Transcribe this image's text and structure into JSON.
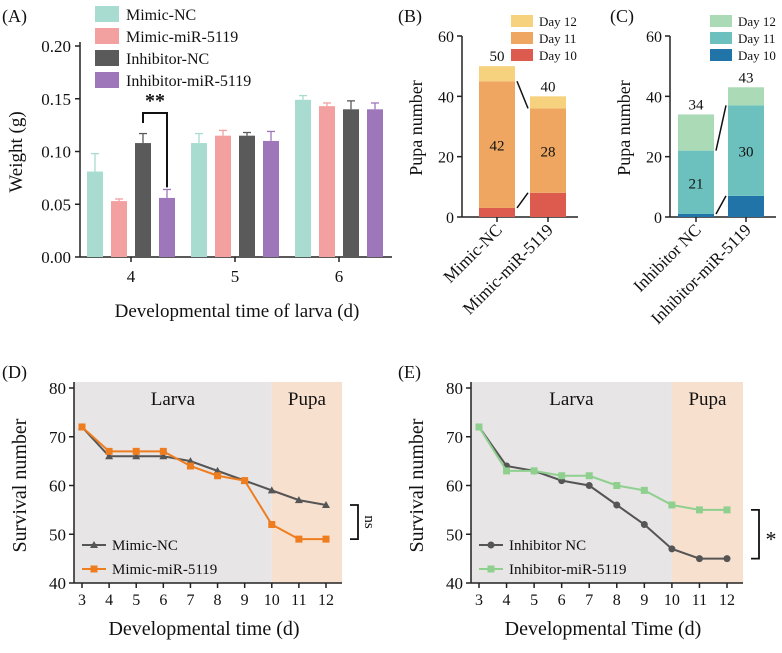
{
  "panels": {
    "A": {
      "label": "(A)"
    },
    "B": {
      "label": "(B)"
    },
    "C": {
      "label": "(C)"
    },
    "D": {
      "label": "(D)"
    },
    "E": {
      "label": "(E)"
    }
  },
  "colors": {
    "mimic_nc": "#a8dcd0",
    "mimic_mir": "#f3a0a0",
    "inhibitor_nc": "#5a5a5a",
    "inhibitor_mir": "#9e77bb",
    "b_day12": "#f6d17e",
    "b_day11": "#eea660",
    "b_day10": "#dd5a4e",
    "c_day12": "#aadbb6",
    "c_day11": "#6cc0be",
    "c_day10": "#2174a8",
    "larva_bg": "#e7e5e5",
    "pupa_bg": "#f8e0cf",
    "line_nc": "#555555",
    "line_mimic_mir": "#ee7d1f",
    "line_inh_mir": "#8fd08f"
  },
  "chart_data": [
    {
      "panel": "A",
      "type": "bar",
      "ylabel": "Weight (g)",
      "xlabel": "Developmental time of larva (d)",
      "ylim": [
        0,
        0.2
      ],
      "yticks": [
        "0.00",
        "0.05",
        "0.10",
        "0.15",
        "0.20"
      ],
      "categories": [
        "4",
        "5",
        "6"
      ],
      "series": [
        {
          "name": "Mimic-NC",
          "values": [
            0.081,
            0.108,
            0.149
          ],
          "errors": [
            0.017,
            0.009,
            0.004
          ]
        },
        {
          "name": "Mimic-miR-5119",
          "values": [
            0.053,
            0.115,
            0.143
          ],
          "errors": [
            0.002,
            0.005,
            0.003
          ]
        },
        {
          "name": "Inhibitor-NC",
          "values": [
            0.108,
            0.115,
            0.14
          ],
          "errors": [
            0.009,
            0.003,
            0.008
          ]
        },
        {
          "name": "Inhibitor-miR-5119",
          "values": [
            0.056,
            0.11,
            0.14
          ],
          "errors": [
            0.008,
            0.009,
            0.006
          ]
        }
      ],
      "annotation": "**"
    },
    {
      "panel": "B",
      "type": "bar",
      "stacked": true,
      "ylabel": "Pupa number",
      "ylim": [
        0,
        60
      ],
      "yticks": [
        "0",
        "20",
        "40",
        "60"
      ],
      "categories": [
        "Mimic-NC",
        "Mimic-miR-5119"
      ],
      "series": [
        {
          "name": "Day 10",
          "values": [
            3,
            8
          ]
        },
        {
          "name": "Day 11",
          "values": [
            42,
            28
          ]
        },
        {
          "name": "Day 12",
          "values": [
            5,
            4
          ]
        }
      ],
      "legend": [
        "Day 12",
        "Day 11",
        "Day 10"
      ],
      "totals": [
        "50",
        "40"
      ],
      "day11_labels": [
        "42",
        "28"
      ]
    },
    {
      "panel": "C",
      "type": "bar",
      "stacked": true,
      "ylabel": "Pupa number",
      "ylim": [
        0,
        60
      ],
      "yticks": [
        "0",
        "20",
        "40",
        "60"
      ],
      "categories": [
        "Inhibitor NC",
        "Inhibitor-miR-5119"
      ],
      "series": [
        {
          "name": "Day 10",
          "values": [
            1,
            7
          ]
        },
        {
          "name": "Day 11",
          "values": [
            21,
            30
          ]
        },
        {
          "name": "Day 12",
          "values": [
            12,
            6
          ]
        }
      ],
      "legend": [
        "Day 12",
        "Day 11",
        "Day 10"
      ],
      "totals": [
        "34",
        "43"
      ],
      "day11_labels": [
        "21",
        "30"
      ]
    },
    {
      "panel": "D",
      "type": "line",
      "ylabel": "Survival number",
      "xlabel": "Developmental time (d)",
      "ylim": [
        40,
        80
      ],
      "yticks": [
        "40",
        "50",
        "60",
        "70",
        "80"
      ],
      "x": [
        3,
        4,
        5,
        6,
        7,
        8,
        9,
        10,
        11,
        12
      ],
      "xticks": [
        "3",
        "4",
        "5",
        "6",
        "7",
        "8",
        "9",
        "10",
        "11",
        "12"
      ],
      "regions": [
        {
          "name": "Larva",
          "from": 3,
          "to": 10
        },
        {
          "name": "Pupa",
          "from": 10,
          "to": 12
        }
      ],
      "series": [
        {
          "name": "Mimic-NC",
          "values": [
            72,
            66,
            66,
            66,
            65,
            63,
            61,
            59,
            57,
            56
          ]
        },
        {
          "name": "Mimic-miR-5119",
          "values": [
            72,
            67,
            67,
            67,
            64,
            62,
            61,
            52,
            49,
            49
          ]
        }
      ],
      "annotation": "ns"
    },
    {
      "panel": "E",
      "type": "line",
      "ylabel": "Survival number",
      "xlabel": "Developmental Time (d)",
      "ylim": [
        40,
        80
      ],
      "yticks": [
        "40",
        "50",
        "60",
        "70",
        "80"
      ],
      "x": [
        3,
        4,
        5,
        6,
        7,
        8,
        9,
        10,
        11,
        12
      ],
      "xticks": [
        "3",
        "4",
        "5",
        "6",
        "7",
        "8",
        "9",
        "10",
        "11",
        "12"
      ],
      "regions": [
        {
          "name": "Larva",
          "from": 3,
          "to": 10
        },
        {
          "name": "Pupa",
          "from": 10,
          "to": 12
        }
      ],
      "series": [
        {
          "name": "Inhibitor NC",
          "values": [
            72,
            64,
            63,
            61,
            60,
            56,
            52,
            47,
            45,
            45
          ]
        },
        {
          "name": "Inhibitor-miR-5119",
          "values": [
            72,
            63,
            63,
            62,
            62,
            60,
            59,
            56,
            55,
            55
          ]
        }
      ],
      "annotation": "*"
    }
  ]
}
